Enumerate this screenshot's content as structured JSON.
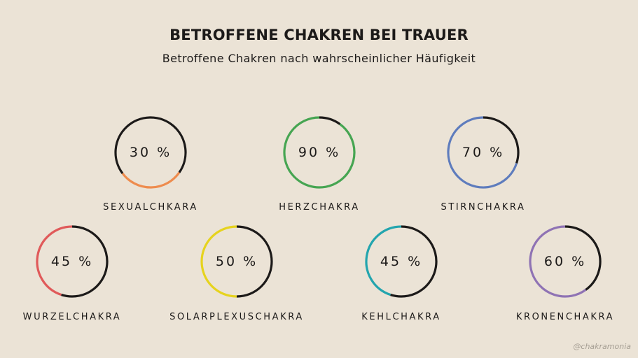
{
  "chart_data": {
    "type": "gauge",
    "title": "BETROFFENE CHAKREN BEI TRAUER",
    "subtitle": "Betroffene Chakren nach wahrscheinlicher Häufigkeit",
    "items": [
      {
        "name": "SEXUALCHKARA",
        "value": 30,
        "value_label": "30 %",
        "color": "#ee8c4e"
      },
      {
        "name": "HERZCHAKRA",
        "value": 90,
        "value_label": "90 %",
        "color": "#46a552"
      },
      {
        "name": "STIRNCHAKRA",
        "value": 70,
        "value_label": "70 %",
        "color": "#5e7cbd"
      },
      {
        "name": "WURZELCHAKRA",
        "value": 45,
        "value_label": "45 %",
        "color": "#e05a5a"
      },
      {
        "name": "SOLARPLEXUSCHAKRA",
        "value": 50,
        "value_label": "50 %",
        "color": "#e6d31e"
      },
      {
        "name": "KEHLCHAKRA",
        "value": 45,
        "value_label": "45 %",
        "color": "#23a5ae"
      },
      {
        "name": "KRONENCHAKRA",
        "value": 60,
        "value_label": "60 %",
        "color": "#8f73b4"
      }
    ],
    "base_color": "#1c1a19"
  },
  "watermark": "@chakramonia"
}
